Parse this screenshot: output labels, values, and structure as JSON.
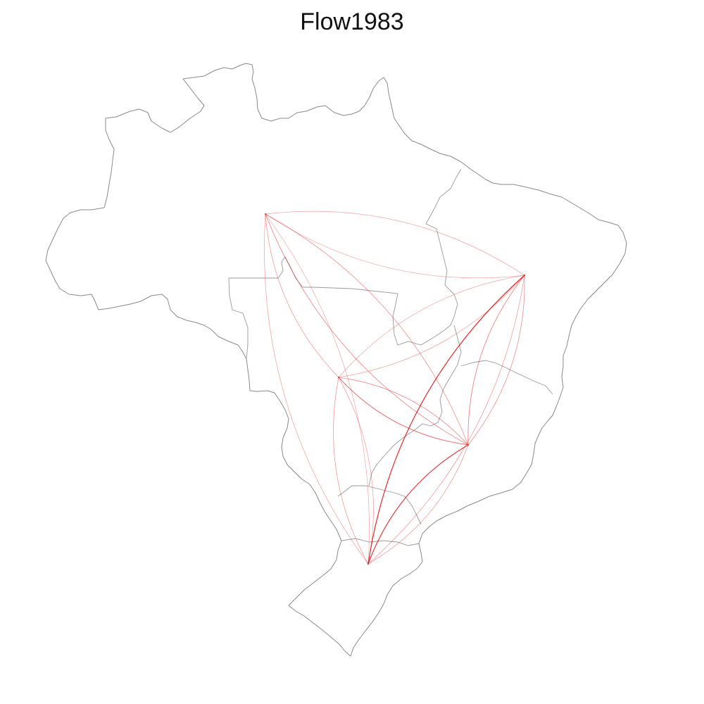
{
  "title": "Flow1983",
  "colors": {
    "background": "#ffffff",
    "outline": "#8a8a8a",
    "flow": "#e31a1c"
  },
  "nodes": [
    {
      "id": "A"
    },
    {
      "id": "B"
    },
    {
      "id": "C"
    },
    {
      "id": "D"
    },
    {
      "id": "E"
    }
  ],
  "flows": [
    {
      "from": "A",
      "to": "B",
      "weight": 0.25
    },
    {
      "from": "A",
      "to": "C",
      "weight": 0.35
    },
    {
      "from": "A",
      "to": "D",
      "weight": 0.45
    },
    {
      "from": "A",
      "to": "E",
      "weight": 0.3
    },
    {
      "from": "B",
      "to": "C",
      "weight": 0.3
    },
    {
      "from": "B",
      "to": "D",
      "weight": 0.5
    },
    {
      "from": "B",
      "to": "E",
      "weight": 1.0
    },
    {
      "from": "C",
      "to": "D",
      "weight": 0.6
    },
    {
      "from": "C",
      "to": "E",
      "weight": 0.35
    },
    {
      "from": "D",
      "to": "E",
      "weight": 0.95
    },
    {
      "from": "B",
      "to": "A",
      "weight": 0.3
    },
    {
      "from": "D",
      "to": "A",
      "weight": 0.4
    },
    {
      "from": "E",
      "to": "A",
      "weight": 0.25
    },
    {
      "from": "E",
      "to": "C",
      "weight": 0.3
    },
    {
      "from": "D",
      "to": "B",
      "weight": 0.4
    },
    {
      "from": "E",
      "to": "D",
      "weight": 0.35
    },
    {
      "from": "C",
      "to": "B",
      "weight": 0.3
    },
    {
      "from": "D",
      "to": "C",
      "weight": 0.45
    },
    {
      "from": "E",
      "to": "B",
      "weight": 0.35
    }
  ]
}
